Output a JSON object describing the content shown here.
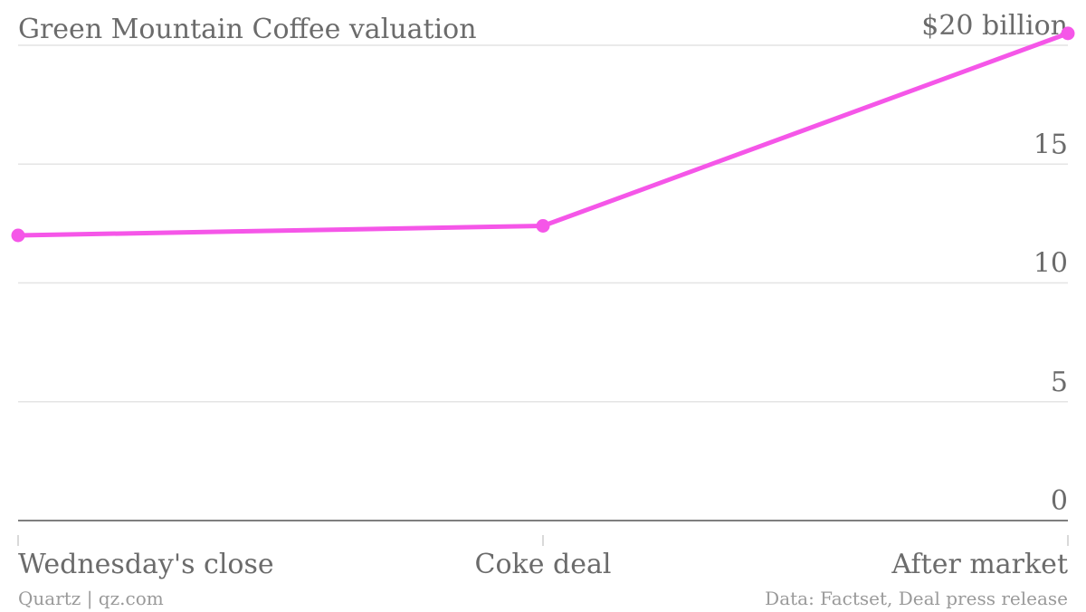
{
  "chart_data": {
    "type": "line",
    "title": "Green Mountain Coffee valuation",
    "categories": [
      "Wednesday's close",
      "Coke deal",
      "After market"
    ],
    "series": [
      {
        "values": [
          12.0,
          12.4,
          20.5
        ]
      }
    ],
    "ylim": [
      0,
      20
    ],
    "yticks": [
      0,
      5,
      10,
      15,
      20
    ],
    "ytick_labels": [
      "0",
      "5",
      "10",
      "15",
      "$20 billion"
    ],
    "grid": true,
    "line_color": "#f556e8"
  },
  "footer": {
    "source_left": "Quartz | qz.com",
    "source_right": "Data: Factset, Deal press release"
  }
}
